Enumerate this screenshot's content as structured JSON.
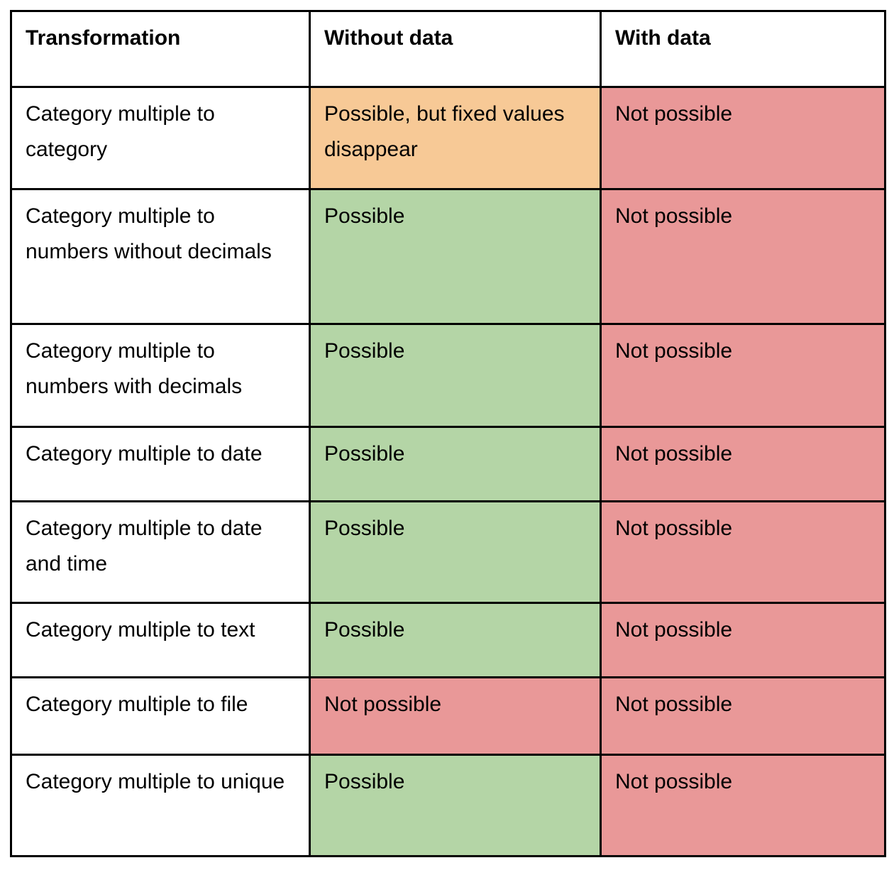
{
  "colors": {
    "warning": "#F7C996",
    "positive": "#B4D5A6",
    "negative": "#E99898",
    "plain": "#FFFFFF",
    "border": "#000000"
  },
  "table": {
    "headers": [
      {
        "label": "Transformation"
      },
      {
        "label": "Without data"
      },
      {
        "label": "With data"
      }
    ],
    "rows": [
      {
        "cells": [
          {
            "text": "Category multiple to category",
            "status": "none"
          },
          {
            "text": "Possible, but fixed values disappear",
            "status": "warning"
          },
          {
            "text": "Not possible",
            "status": "negative"
          }
        ]
      },
      {
        "cells": [
          {
            "text": "Category multiple to numbers without decimals",
            "status": "none"
          },
          {
            "text": "Possible",
            "status": "positive"
          },
          {
            "text": "Not possible",
            "status": "negative"
          }
        ]
      },
      {
        "cells": [
          {
            "text": "Category multiple to numbers with decimals",
            "status": "none"
          },
          {
            "text": "Possible",
            "status": "positive"
          },
          {
            "text": "Not possible",
            "status": "negative"
          }
        ]
      },
      {
        "cells": [
          {
            "text": "Category multiple to date",
            "status": "none"
          },
          {
            "text": "Possible",
            "status": "positive"
          },
          {
            "text": "Not possible",
            "status": "negative"
          }
        ]
      },
      {
        "cells": [
          {
            "text": "Category multiple to date and time",
            "status": "none"
          },
          {
            "text": "Possible",
            "status": "positive"
          },
          {
            "text": "Not possible",
            "status": "negative"
          }
        ]
      },
      {
        "cells": [
          {
            "text": "Category multiple to text",
            "status": "none"
          },
          {
            "text": "Possible",
            "status": "positive"
          },
          {
            "text": "Not possible",
            "status": "negative"
          }
        ]
      },
      {
        "cells": [
          {
            "text": "Category multiple to file",
            "status": "none"
          },
          {
            "text": "Not possible",
            "status": "negative"
          },
          {
            "text": "Not possible",
            "status": "negative"
          }
        ]
      },
      {
        "cells": [
          {
            "text": "Category multiple to unique",
            "status": "none"
          },
          {
            "text": "Possible",
            "status": "positive"
          },
          {
            "text": "Not possible",
            "status": "negative"
          }
        ]
      }
    ]
  }
}
